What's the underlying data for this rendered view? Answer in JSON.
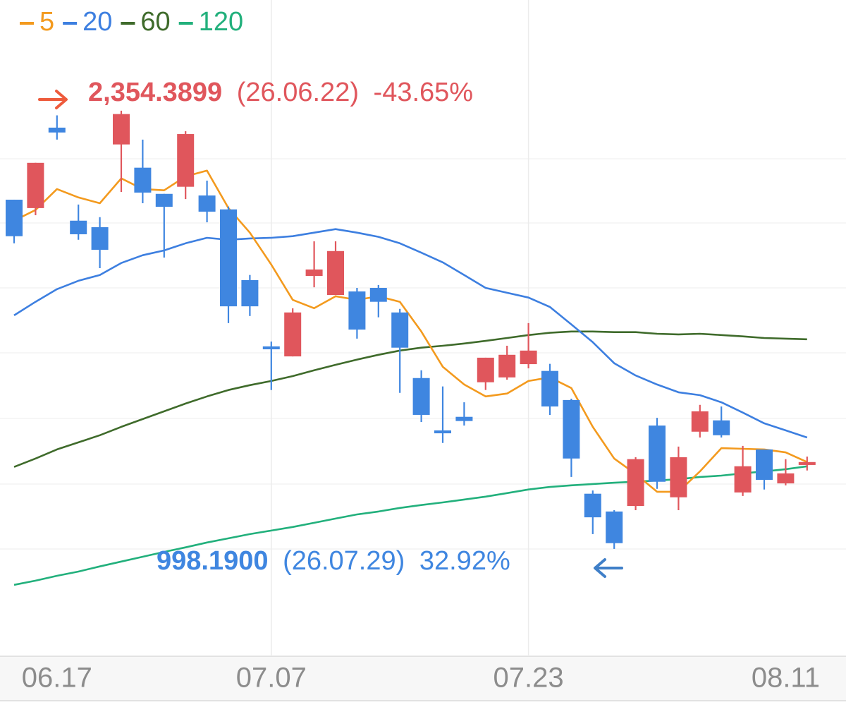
{
  "chart_data": {
    "type": "candlestick",
    "categories": [
      null,
      null,
      "06.17",
      null,
      null,
      null,
      null,
      null,
      null,
      null,
      null,
      null,
      "07.07",
      null,
      null,
      null,
      null,
      null,
      null,
      null,
      null,
      null,
      null,
      null,
      "07.23",
      null,
      null,
      null,
      null,
      null,
      null,
      null,
      null,
      null,
      null,
      null,
      "08.11",
      null
    ],
    "open": [
      2079,
      2053,
      2302,
      2014,
      1994,
      2250,
      2178,
      2097,
      2119,
      2092,
      2049,
      1830,
      1625,
      1594,
      1843,
      1784,
      1795,
      1806,
      1730,
      1527,
      1365,
      1407,
      1514,
      1529,
      1570,
      1549,
      1459,
      1169,
      1114,
      1131,
      1380,
      1158,
      1361,
      1396,
      1173,
      1306,
      1201,
      1258
    ],
    "high": [
      2079,
      2193,
      2340,
      2064,
      2025,
      2354.3899,
      2265,
      2097,
      2291,
      2138,
      2058,
      1846,
      1640,
      1743,
      1950,
      1950,
      1806,
      1815,
      1741,
      1551,
      1501,
      1452,
      1590,
      1627,
      1697,
      1571,
      1463,
      1179,
      1118,
      1282,
      1404,
      1315,
      1444,
      1439,
      1317,
      1306,
      1276,
      1284
    ],
    "low": [
      1944,
      2031,
      2265,
      1955,
      1867,
      2103,
      2068,
      1900,
      2081,
      2009,
      1697,
      1719,
      1490,
      1594,
      1808,
      1784,
      1649,
      1715,
      1481,
      1391,
      1326,
      1380,
      1490,
      1522,
      1557,
      1413,
      1221,
      1044,
      998.19,
      1118,
      1184,
      1118,
      1343,
      1343,
      1162,
      1182,
      1195,
      1241
    ],
    "close": [
      1966,
      2193,
      2287,
      1972,
      1924,
      2344,
      2101,
      2057,
      2282,
      2042,
      1749,
      1749,
      1616,
      1730,
      1863,
      1920,
      1677,
      1763,
      1621,
      1413,
      1356,
      1394,
      1590,
      1599,
      1612,
      1439,
      1278,
      1096,
      1016,
      1276,
      1206,
      1282,
      1424,
      1350,
      1254,
      1212,
      1232,
      1267
    ],
    "up_color": "#e0565c",
    "down_color": "#3f86e0",
    "series": [
      {
        "name": "5",
        "color": "#f39a1e",
        "values": [
          2014,
          2047,
          2112,
          2086,
          2068,
          2145,
          2112,
          2108,
          2151,
          2169,
          2053,
          1977,
          1878,
          1769,
          1743,
          1780,
          1769,
          1780,
          1763,
          1671,
          1562,
          1507,
          1470,
          1479,
          1518,
          1529,
          1496,
          1376,
          1278,
          1230,
          1175,
          1175,
          1238,
          1310,
          1308,
          1306,
          1297,
          1267
        ]
      },
      {
        "name": "20",
        "color": "#3d7fe0",
        "values": [
          1721,
          1763,
          1802,
          1828,
          1846,
          1883,
          1907,
          1922,
          1944,
          1961,
          1955,
          1959,
          1961,
          1966,
          1977,
          1988,
          1977,
          1964,
          1944,
          1915,
          1885,
          1846,
          1806,
          1791,
          1776,
          1747,
          1693,
          1638,
          1573,
          1535,
          1507,
          1483,
          1474,
          1452,
          1420,
          1387,
          1365,
          1343
        ]
      },
      {
        "name": "60",
        "color": "#3f6b2b",
        "values": [
          1252,
          1278,
          1306,
          1328,
          1350,
          1376,
          1400,
          1424,
          1448,
          1470,
          1490,
          1505,
          1518,
          1533,
          1551,
          1568,
          1584,
          1599,
          1612,
          1621,
          1627,
          1634,
          1642,
          1651,
          1660,
          1667,
          1671,
          1671,
          1669,
          1669,
          1664,
          1662,
          1664,
          1660,
          1656,
          1651,
          1649,
          1647
        ]
      },
      {
        "name": "120",
        "color": "#22b07c",
        "values": [
          887,
          900,
          915,
          928,
          944,
          959,
          974,
          989,
          1003,
          1018,
          1031,
          1044,
          1055,
          1066,
          1079,
          1092,
          1105,
          1114,
          1125,
          1134,
          1142,
          1151,
          1160,
          1171,
          1182,
          1190,
          1195,
          1199,
          1203,
          1206,
          1210,
          1214,
          1221,
          1225,
          1232,
          1238,
          1245,
          1254
        ]
      }
    ],
    "ylim": [
      666,
      2697
    ],
    "annotations": {
      "high": {
        "value": "2,354.3899",
        "date": "(26.06.22)",
        "change": "-43.65%",
        "color": "#e0565c"
      },
      "low": {
        "value": "998.1900",
        "date": "(26.07.29)",
        "change": "32.92%",
        "color": "#3f86e0"
      }
    }
  }
}
